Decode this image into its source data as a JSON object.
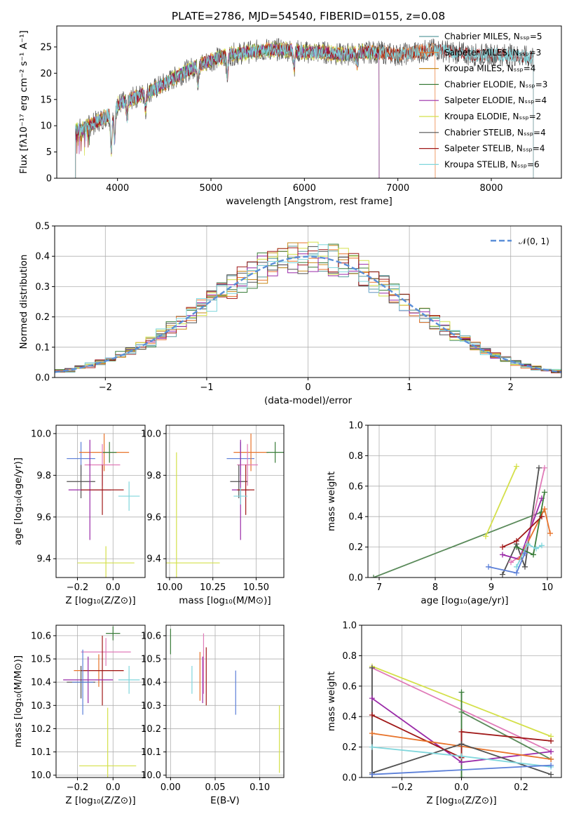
{
  "title": "PLATE=2786, MJD=54540, FIBERID=0155, z=0.08",
  "colors": {
    "Chabrier MILES": "#5f9ea0",
    "Salpeter MILES": "#e8732a",
    "Kroupa MILES": "#c98a1a",
    "Chabrier ELODIE": "#3a7d3a",
    "Salpeter ELODIE": "#9a2aa8",
    "Kroupa ELODIE": "#d4e04a",
    "Chabrier STELIB": "#505050",
    "Salpeter STELIB": "#a01818",
    "Kroupa STELIB": "#7fd6dc",
    "blue": "#5b7fd8",
    "pink": "#e07ab8",
    "green": "#5a8a5a",
    "gaussian": "#5b8fd8"
  },
  "chart_data": [
    {
      "type": "line",
      "id": "spectrum",
      "title": "PLATE=2786, MJD=54540, FIBERID=0155, z=0.08",
      "xlabel": "wavelength [Angstrom, rest frame]",
      "ylabel": "Flux [fλ10⁻¹⁷ erg cm⁻² s⁻¹ A⁻¹]",
      "xlim": [
        3350,
        8750
      ],
      "ylim": [
        0,
        29
      ],
      "xticks": [
        "4000",
        "5000",
        "6000",
        "7000",
        "8000"
      ],
      "yticks": [
        "0",
        "5",
        "10",
        "15",
        "20",
        "25"
      ],
      "legend_position": "upper-right",
      "legend": [
        "Chabrier MILES, Nₛₛₚ=5",
        "Salpeter MILES, Nₛₛₚ=3",
        "Kroupa MILES, Nₛₛₚ=4",
        "Chabrier ELODIE, Nₛₛₚ=3",
        "Salpeter ELODIE, Nₛₛₚ=4",
        "Kroupa ELODIE, Nₛₛₚ=2",
        "Chabrier STELIB, Nₛₛₚ=4",
        "Salpeter STELIB, Nₛₛₚ=4",
        "Kroupa STELIB, Nₛₛₚ=6"
      ],
      "continuum_x": [
        3550,
        3700,
        3900,
        4000,
        4200,
        4400,
        4600,
        4800,
        5000,
        5200,
        5400,
        5600,
        5800,
        6000,
        6200,
        6400,
        6600,
        6800,
        7000,
        7200,
        7400,
        7600,
        7800,
        8000,
        8200,
        8400
      ],
      "continuum_y": [
        9,
        10,
        12,
        14,
        15.5,
        17,
        19,
        21,
        22.5,
        23.5,
        24,
        24.5,
        24.5,
        24,
        24,
        23.5,
        24,
        24,
        23.5,
        24,
        24.5,
        24,
        23.5,
        23.5,
        23.5,
        23
      ]
    },
    {
      "type": "bar",
      "id": "residuals",
      "xlabel": "(data-model)/error",
      "ylabel": "Normed distribution",
      "xlim": [
        -2.5,
        2.5
      ],
      "ylim": [
        0,
        0.5
      ],
      "xticks": [
        "−2",
        "−1",
        "0",
        "1",
        "2"
      ],
      "yticks": [
        "0.0",
        "0.1",
        "0.2",
        "0.3",
        "0.4",
        "0.5"
      ],
      "legend": [
        "𝒩(0, 1)"
      ],
      "legend_position": "upper-right",
      "gaussian": {
        "mean": 0,
        "sigma": 1
      }
    },
    {
      "type": "scatter",
      "id": "age-vs-z",
      "xlabel": "Z [log₁₀(Z/Z⊙)]",
      "ylabel": "age  [log₁₀(age/yr)]",
      "xlim": [
        -0.32,
        0.18
      ],
      "ylim": [
        9.31,
        10.04
      ],
      "xticks": [
        "−0.2",
        "0.0"
      ],
      "yticks": [
        "9.4",
        "9.6",
        "9.8",
        "10.0"
      ],
      "points": [
        {
          "c": "blue",
          "x": -0.18,
          "y": 9.88,
          "xe": 0.08,
          "ye": 0.08
        },
        {
          "c": "Salpeter MILES",
          "x": -0.05,
          "y": 9.91,
          "xe": 0.14,
          "ye": 0.09
        },
        {
          "c": "Chabrier ELODIE",
          "x": -0.02,
          "y": 9.91,
          "xe": 0.04,
          "ye": 0.05
        },
        {
          "c": "pink",
          "x": -0.06,
          "y": 9.85,
          "xe": 0.1,
          "ye": 0.1
        },
        {
          "c": "Chabrier STELIB",
          "x": -0.18,
          "y": 9.77,
          "xe": 0.08,
          "ye": 0.08
        },
        {
          "c": "Salpeter ELODIE",
          "x": -0.13,
          "y": 9.73,
          "xe": 0.12,
          "ye": 0.24
        },
        {
          "c": "Salpeter STELIB",
          "x": -0.06,
          "y": 9.73,
          "xe": 0.12,
          "ye": 0.12
        },
        {
          "c": "Kroupa STELIB",
          "x": 0.09,
          "y": 9.7,
          "xe": 0.06,
          "ye": 0.07
        },
        {
          "c": "Kroupa ELODIE",
          "x": -0.04,
          "y": 9.38,
          "xe": 0.16,
          "ye": 0.08
        }
      ]
    },
    {
      "type": "scatter",
      "id": "age-vs-mass",
      "xlabel": "mass [log₁₀(M/M⊙)]",
      "ylabel": "",
      "xlim": [
        9.98,
        10.66
      ],
      "ylim": [
        9.31,
        10.04
      ],
      "xticks": [
        "10.00",
        "10.25",
        "10.50"
      ],
      "yticks": [
        "9.4",
        "9.6",
        "9.8",
        "10.0"
      ],
      "points": [
        {
          "c": "blue",
          "x": 10.41,
          "y": 9.88,
          "xe": 0.08,
          "ye": 0.08
        },
        {
          "c": "Salpeter MILES",
          "x": 10.47,
          "y": 9.91,
          "xe": 0.1,
          "ye": 0.09
        },
        {
          "c": "Chabrier ELODIE",
          "x": 10.61,
          "y": 9.91,
          "xe": 0.05,
          "ye": 0.05
        },
        {
          "c": "pink",
          "x": 10.45,
          "y": 9.85,
          "xe": 0.06,
          "ye": 0.1
        },
        {
          "c": "Chabrier STELIB",
          "x": 10.4,
          "y": 9.77,
          "xe": 0.05,
          "ye": 0.08
        },
        {
          "c": "Salpeter ELODIE",
          "x": 10.41,
          "y": 9.73,
          "xe": 0.05,
          "ye": 0.24
        },
        {
          "c": "Salpeter STELIB",
          "x": 10.44,
          "y": 9.73,
          "xe": 0.05,
          "ye": 0.12
        },
        {
          "c": "Kroupa STELIB",
          "x": 10.41,
          "y": 9.7,
          "xe": 0.04,
          "ye": 0.04
        },
        {
          "c": "Kroupa ELODIE",
          "x": 10.04,
          "y": 9.38,
          "xe": 0.25,
          "ye": 0.53
        }
      ]
    },
    {
      "type": "line",
      "id": "weight-vs-age",
      "xlabel": "age  [log₁₀(age/yr)]",
      "ylabel": "mass weight",
      "xlim": [
        6.8,
        10.25
      ],
      "ylim": [
        0,
        1
      ],
      "xticks": [
        "7",
        "8",
        "9",
        "10"
      ],
      "yticks": [
        "0.0",
        "0.2",
        "0.4",
        "0.6",
        "0.8",
        "1.0"
      ],
      "series": [
        {
          "c": "green",
          "x": [
            6.9,
            9.9
          ],
          "y": [
            0.0,
            0.43
          ]
        },
        {
          "c": "Kroupa ELODIE",
          "x": [
            8.9,
            9.45
          ],
          "y": [
            0.27,
            0.73
          ]
        },
        {
          "c": "Chabrier STELIB",
          "x": [
            9.2,
            9.45,
            9.6,
            9.85
          ],
          "y": [
            0.02,
            0.22,
            0.07,
            0.72
          ]
        },
        {
          "c": "pink",
          "x": [
            9.35,
            9.6,
            9.95
          ],
          "y": [
            0.1,
            0.16,
            0.72
          ]
        },
        {
          "c": "Salpeter ELODIE",
          "x": [
            9.2,
            9.5,
            9.9
          ],
          "y": [
            0.15,
            0.12,
            0.52
          ]
        },
        {
          "c": "Salpeter MILES",
          "x": [
            9.5,
            9.95,
            10.05
          ],
          "y": [
            0.12,
            0.45,
            0.29
          ]
        },
        {
          "c": "Chabrier ELODIE",
          "x": [
            9.45,
            9.75,
            9.95
          ],
          "y": [
            0.2,
            0.15,
            0.56
          ]
        },
        {
          "c": "Salpeter STELIB",
          "x": [
            9.2,
            9.45,
            9.9
          ],
          "y": [
            0.2,
            0.24,
            0.4
          ]
        },
        {
          "c": "Kroupa STELIB",
          "x": [
            9.45,
            9.65,
            9.8,
            9.9
          ],
          "y": [
            0.07,
            0.22,
            0.19,
            0.21
          ]
        },
        {
          "c": "blue",
          "x": [
            8.95,
            9.45,
            9.6
          ],
          "y": [
            0.07,
            0.03,
            0.16
          ]
        }
      ]
    },
    {
      "type": "scatter",
      "id": "mass-vs-z",
      "xlabel": "Z [log₁₀(Z/Z⊙)]",
      "ylabel": "mass [log₁₀(M/M⊙)]",
      "xlim": [
        -0.32,
        0.18
      ],
      "ylim": [
        9.99,
        10.645
      ],
      "xticks": [
        "−0.2",
        "0.0"
      ],
      "yticks": [
        "10.0",
        "10.1",
        "10.2",
        "10.3",
        "10.4",
        "10.5",
        "10.6"
      ],
      "points": [
        {
          "c": "Chabrier ELODIE",
          "x": 0.0,
          "y": 10.61,
          "xe": 0.04,
          "ye": 0.03
        },
        {
          "c": "pink",
          "x": -0.04,
          "y": 10.53,
          "xe": 0.14,
          "ye": 0.06
        },
        {
          "c": "Salpeter MILES",
          "x": -0.08,
          "y": 10.45,
          "xe": 0.14,
          "ye": 0.07
        },
        {
          "c": "Salpeter STELIB",
          "x": -0.06,
          "y": 10.45,
          "xe": 0.12,
          "ye": 0.15
        },
        {
          "c": "Salpeter ELODIE",
          "x": -0.14,
          "y": 10.41,
          "xe": 0.14,
          "ye": 0.1
        },
        {
          "c": "Kroupa STELIB",
          "x": 0.09,
          "y": 10.41,
          "xe": 0.06,
          "ye": 0.06
        },
        {
          "c": "Chabrier STELIB",
          "x": -0.18,
          "y": 10.4,
          "xe": 0.08,
          "ye": 0.07
        },
        {
          "c": "blue",
          "x": -0.17,
          "y": 10.4,
          "xe": 0.06,
          "ye": 0.14
        },
        {
          "c": "Kroupa ELODIE",
          "x": -0.03,
          "y": 10.04,
          "xe": 0.16,
          "ye": 0.25
        }
      ]
    },
    {
      "type": "scatter",
      "id": "mass-vs-ebv",
      "xlabel": "E(B-V)",
      "ylabel": "",
      "xlim": [
        -0.005,
        0.127
      ],
      "ylim": [
        9.99,
        10.645
      ],
      "xticks": [
        "0.00",
        "0.05",
        "0.10"
      ],
      "yticks": [
        "10.0",
        "10.1",
        "10.2",
        "10.3",
        "10.4",
        "10.5",
        "10.6"
      ],
      "vbars": [
        {
          "c": "Chabrier ELODIE",
          "x": 0.0,
          "y0": 10.52,
          "y1": 10.63
        },
        {
          "c": "pink",
          "x": 0.037,
          "y0": 10.35,
          "y1": 10.61
        },
        {
          "c": "Salpeter MILES",
          "x": 0.033,
          "y0": 10.32,
          "y1": 10.53
        },
        {
          "c": "Salpeter STELIB",
          "x": 0.04,
          "y0": 10.3,
          "y1": 10.55
        },
        {
          "c": "Kroupa STELIB",
          "x": 0.024,
          "y0": 10.35,
          "y1": 10.47
        },
        {
          "c": "Salpeter ELODIE",
          "x": 0.036,
          "y0": 10.31,
          "y1": 10.51
        },
        {
          "c": "blue",
          "x": 0.073,
          "y0": 10.26,
          "y1": 10.45
        },
        {
          "c": "Kroupa ELODIE",
          "x": 0.122,
          "y0": 10.01,
          "y1": 10.3
        }
      ]
    },
    {
      "type": "line",
      "id": "weight-vs-z",
      "xlabel": "Z [log₁₀(Z/Z⊙)]",
      "ylabel": "mass weight",
      "xlim": [
        -0.335,
        0.335
      ],
      "ylim": [
        0,
        1
      ],
      "xticks": [
        "−0.2",
        "0.0",
        "0.2"
      ],
      "yticks": [
        "0.0",
        "0.2",
        "0.4",
        "0.6",
        "0.8",
        "1.0"
      ],
      "series": [
        {
          "c": "Kroupa ELODIE",
          "x": [
            -0.3,
            0.3
          ],
          "y": [
            0.73,
            0.27
          ]
        },
        {
          "c": "pink",
          "x": [
            -0.3,
            0.3
          ],
          "y": [
            0.72,
            0.17
          ]
        },
        {
          "c": "Chabrier ELODIE",
          "x": [
            0.0,
            0.0
          ],
          "y": [
            0.0,
            0.56
          ]
        },
        {
          "c": "Chabrier STELIB",
          "x": [
            -0.3,
            -0.3
          ],
          "y": [
            0.0,
            0.72
          ]
        },
        {
          "c": "Salpeter ELODIE",
          "x": [
            -0.3,
            0.0,
            0.3
          ],
          "y": [
            0.52,
            0.1,
            0.17
          ]
        },
        {
          "c": "green",
          "x": [
            0.0,
            0.3
          ],
          "y": [
            0.43,
            0.12
          ]
        },
        {
          "c": "Salpeter STELIB",
          "x": [
            -0.3,
            0.0,
            0.0,
            0.3
          ],
          "y": [
            0.41,
            0.13,
            0.3,
            0.24
          ]
        },
        {
          "c": "Salpeter MILES",
          "x": [
            -0.3,
            0.3
          ],
          "y": [
            0.29,
            0.12
          ]
        },
        {
          "c": "Chabrier STELIB",
          "x": [
            -0.3,
            0.0,
            0.3
          ],
          "y": [
            0.03,
            0.22,
            0.02
          ]
        },
        {
          "c": "Kroupa STELIB",
          "x": [
            -0.3,
            0.0,
            0.3
          ],
          "y": [
            0.2,
            0.14,
            0.07
          ]
        },
        {
          "c": "blue",
          "x": [
            -0.3,
            0.3
          ],
          "y": [
            0.02,
            0.08
          ]
        }
      ]
    }
  ]
}
